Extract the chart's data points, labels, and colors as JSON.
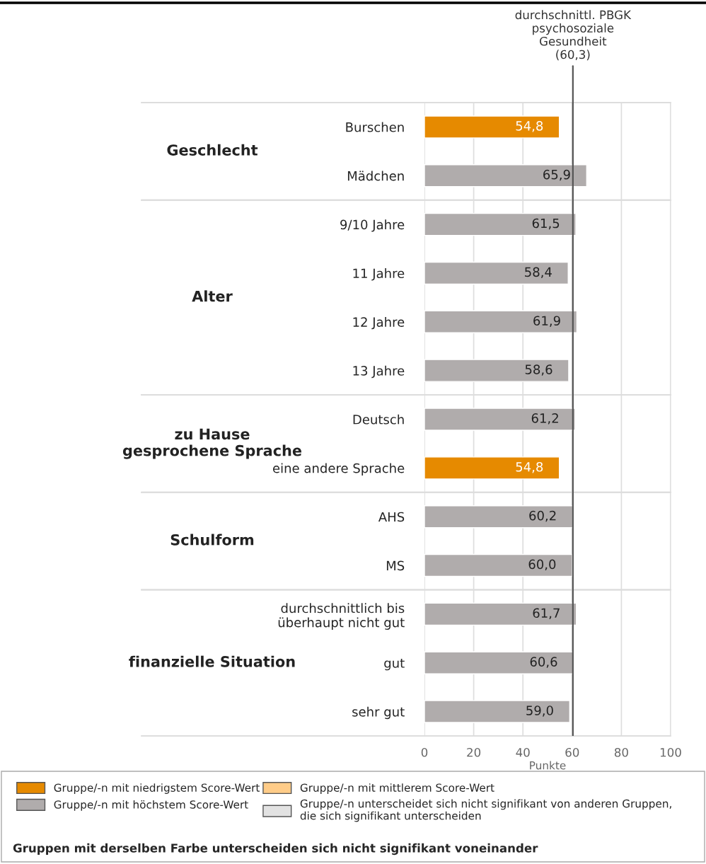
{
  "chart_data": {
    "type": "bar",
    "orientation": "horizontal",
    "categories": [
      "Burschen",
      "Mädchen",
      "9/10 Jahre",
      "11 Jahre",
      "12 Jahre",
      "13 Jahre",
      "Deutsch",
      "eine andere Sprache",
      "AHS",
      "MS",
      "durchschnittlich bis\nüberhaupt nicht gut",
      "gut",
      "sehr gut"
    ],
    "series": [
      {
        "name": "Gruppe/-n mit niedrigstem Score-Wert",
        "color": "#e68a00",
        "values": [
          54.8,
          null,
          null,
          null,
          null,
          null,
          null,
          54.8,
          null,
          null,
          null,
          null,
          null
        ]
      },
      {
        "name": "Gruppe/-n mit höchstem Score-Wert",
        "color": "#b0acac",
        "values": [
          null,
          65.9,
          61.5,
          58.4,
          61.9,
          58.6,
          61.2,
          null,
          60.2,
          60.0,
          61.7,
          60.6,
          59.0
        ]
      },
      {
        "name": "Gruppe/-n mit mittlerem Score-Wert",
        "color": "#ffcc88",
        "values": [
          null,
          null,
          null,
          null,
          null,
          null,
          null,
          null,
          null,
          null,
          null,
          null,
          null
        ]
      },
      {
        "name": "Gruppe/-n unterscheidet sich nicht signifikant von anderen Gruppen,\ndie sich signifikant unterscheiden",
        "color": "#e2e2e2",
        "values": [
          null,
          null,
          null,
          null,
          null,
          null,
          null,
          null,
          null,
          null,
          null,
          null,
          null
        ]
      }
    ],
    "value_labels": [
      "54,8",
      "65,9",
      "61,5",
      "58,4",
      "61,9",
      "58,6",
      "61,2",
      "54,8",
      "60,2",
      "60,0",
      "61,7",
      "60,6",
      "59,0"
    ],
    "xlim": [
      0,
      100
    ],
    "xticks": [
      0,
      20,
      40,
      60,
      80,
      100
    ],
    "xlabel": "Punkte",
    "grid": "x",
    "ref_lines": [
      {
        "axis": "x",
        "value": 60.3,
        "label": "durchschnittl. PBGK\npsychosoziale\nGesundheit\n(60,3)",
        "color": "#555555"
      }
    ],
    "legend": "bottom",
    "annotations": [
      "Geschlecht",
      "Alter",
      "zu Hause\ngesprochene Sprache",
      "Schulform",
      "finanzielle Situation",
      "Gruppen mit derselben Farbe unterscheiden sich nicht signifikant voneinander"
    ]
  }
}
